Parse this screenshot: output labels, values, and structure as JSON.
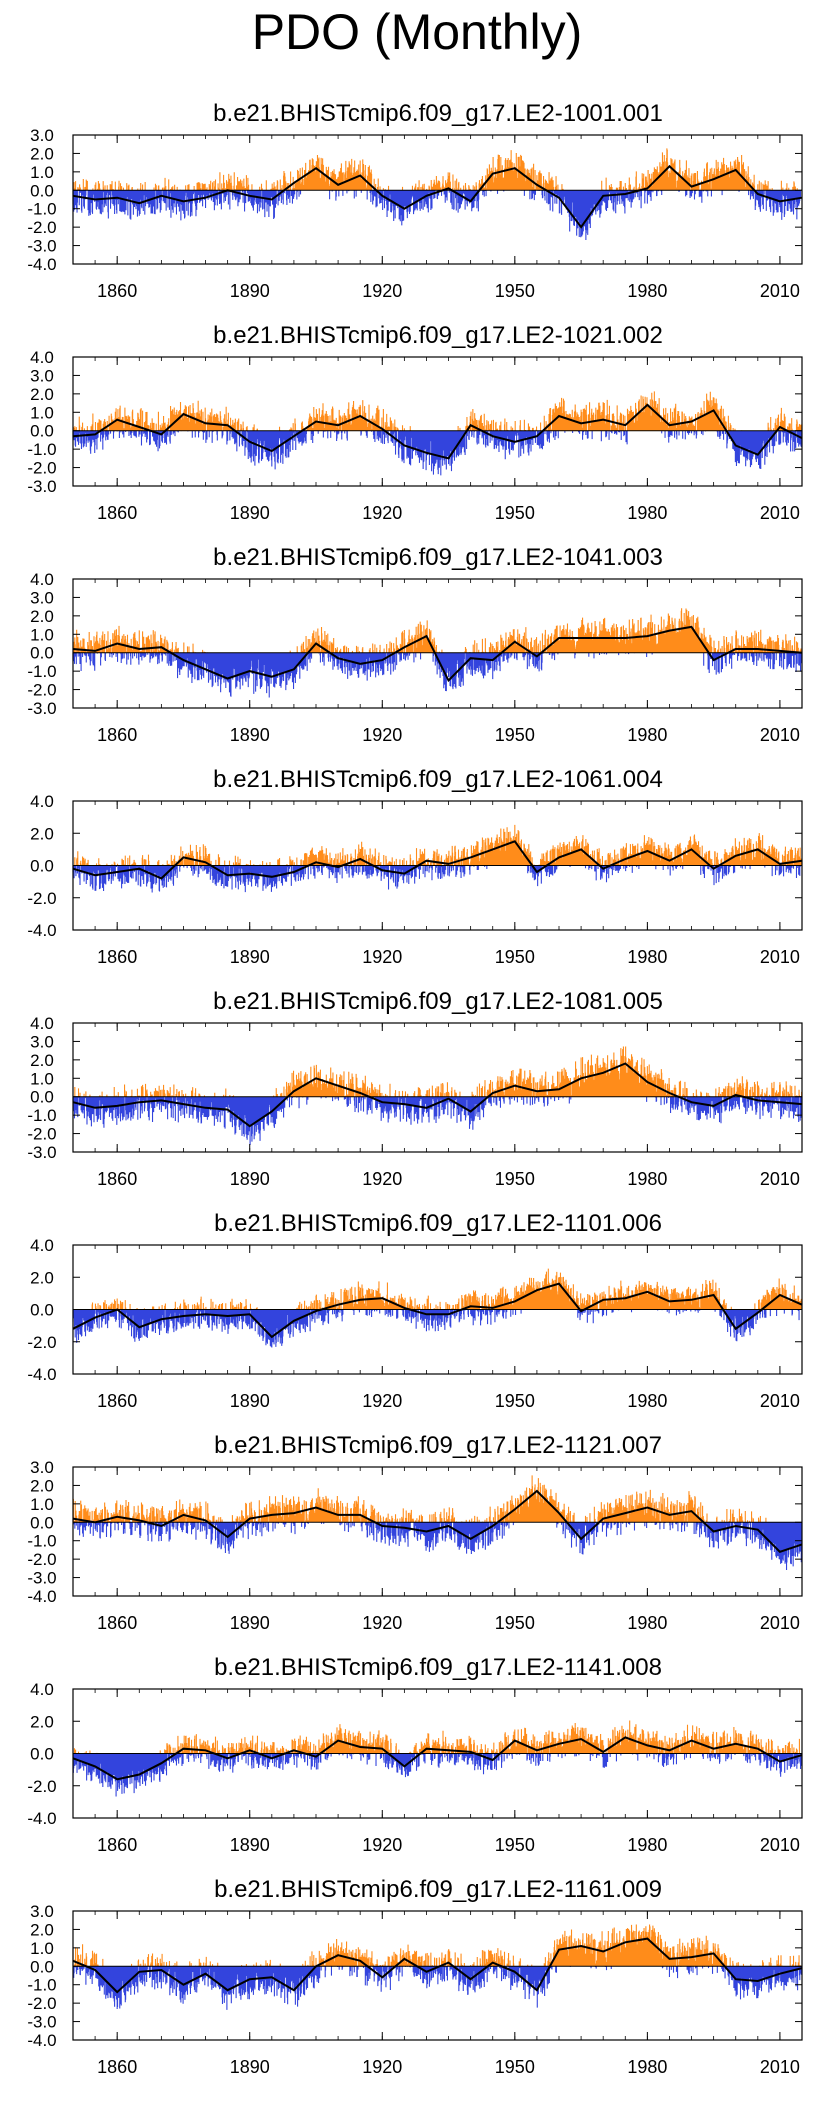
{
  "page_title": "PDO (Monthly)",
  "colors": {
    "positive": "#ff8c1a",
    "negative": "#3344dd",
    "smooth": "#000000",
    "axis": "#000000"
  },
  "chart_data": [
    {
      "type": "bar",
      "title": "b.e21.BHISTcmip6.f09_g17.LE2-1001.001",
      "xlim": [
        1850,
        2015
      ],
      "ylim": [
        -4.0,
        3.0
      ],
      "yticks": [
        -4.0,
        -3.0,
        -2.0,
        -1.0,
        0.0,
        1.0,
        2.0,
        3.0
      ],
      "ytick_labels": [
        "-4.0",
        "-3.0",
        "-2.0",
        "-1.0",
        "0.0",
        "1.0",
        "2.0",
        "3.0"
      ],
      "xticks": [
        1860,
        1890,
        1920,
        1950,
        1980,
        2010
      ],
      "xtick_labels": [
        "1860",
        "1890",
        "1920",
        "1950",
        "1980",
        "2010"
      ],
      "xlabel": "",
      "ylabel": "",
      "smooth_x": [
        1850,
        1855,
        1860,
        1865,
        1870,
        1875,
        1880,
        1885,
        1890,
        1895,
        1900,
        1905,
        1910,
        1915,
        1920,
        1925,
        1930,
        1935,
        1940,
        1945,
        1950,
        1955,
        1960,
        1965,
        1970,
        1975,
        1980,
        1985,
        1990,
        1995,
        2000,
        2005,
        2010,
        2015
      ],
      "smooth_y": [
        -0.3,
        -0.5,
        -0.4,
        -0.7,
        -0.3,
        -0.6,
        -0.4,
        0.0,
        -0.3,
        -0.5,
        0.4,
        1.2,
        0.3,
        0.8,
        -0.3,
        -1.0,
        -0.3,
        0.1,
        -0.6,
        0.9,
        1.2,
        0.3,
        -0.4,
        -2.0,
        -0.3,
        -0.2,
        0.1,
        1.3,
        0.2,
        0.6,
        1.1,
        -0.2,
        -0.6,
        -0.4
      ]
    },
    {
      "type": "bar",
      "title": "b.e21.BHISTcmip6.f09_g17.LE2-1021.002",
      "xlim": [
        1850,
        2015
      ],
      "ylim": [
        -3.0,
        4.0
      ],
      "yticks": [
        -3.0,
        -2.0,
        -1.0,
        0.0,
        1.0,
        2.0,
        3.0,
        4.0
      ],
      "ytick_labels": [
        "-3.0",
        "-2.0",
        "-1.0",
        "0.0",
        "1.0",
        "2.0",
        "3.0",
        "4.0"
      ],
      "xticks": [
        1860,
        1890,
        1920,
        1950,
        1980,
        2010
      ],
      "xtick_labels": [
        "1860",
        "1890",
        "1920",
        "1950",
        "1980",
        "2010"
      ],
      "xlabel": "",
      "ylabel": "",
      "smooth_x": [
        1850,
        1855,
        1860,
        1865,
        1870,
        1875,
        1880,
        1885,
        1890,
        1895,
        1900,
        1905,
        1910,
        1915,
        1920,
        1925,
        1930,
        1935,
        1940,
        1945,
        1950,
        1955,
        1960,
        1965,
        1970,
        1975,
        1980,
        1985,
        1990,
        1995,
        2000,
        2005,
        2010,
        2015
      ],
      "smooth_y": [
        -0.3,
        -0.2,
        0.6,
        0.2,
        -0.2,
        0.9,
        0.4,
        0.3,
        -0.6,
        -1.1,
        -0.3,
        0.5,
        0.3,
        0.8,
        0.1,
        -0.8,
        -1.2,
        -1.5,
        0.3,
        -0.3,
        -0.6,
        -0.3,
        0.8,
        0.4,
        0.6,
        0.3,
        1.4,
        0.3,
        0.5,
        1.1,
        -0.8,
        -1.3,
        0.2,
        -0.4
      ]
    },
    {
      "type": "bar",
      "title": "b.e21.BHISTcmip6.f09_g17.LE2-1041.003",
      "xlim": [
        1850,
        2015
      ],
      "ylim": [
        -3.0,
        4.0
      ],
      "yticks": [
        -3.0,
        -2.0,
        -1.0,
        0.0,
        1.0,
        2.0,
        3.0,
        4.0
      ],
      "ytick_labels": [
        "-3.0",
        "-2.0",
        "-1.0",
        "0.0",
        "1.0",
        "2.0",
        "3.0",
        "4.0"
      ],
      "xticks": [
        1860,
        1890,
        1920,
        1950,
        1980,
        2010
      ],
      "xtick_labels": [
        "1860",
        "1890",
        "1920",
        "1950",
        "1980",
        "2010"
      ],
      "xlabel": "",
      "ylabel": "",
      "smooth_x": [
        1850,
        1855,
        1860,
        1865,
        1870,
        1875,
        1880,
        1885,
        1890,
        1895,
        1900,
        1905,
        1910,
        1915,
        1920,
        1925,
        1930,
        1935,
        1940,
        1945,
        1950,
        1955,
        1960,
        1965,
        1970,
        1975,
        1980,
        1985,
        1990,
        1995,
        2000,
        2005,
        2010,
        2015
      ],
      "smooth_y": [
        0.2,
        0.1,
        0.5,
        0.2,
        0.3,
        -0.4,
        -0.9,
        -1.4,
        -1.0,
        -1.3,
        -0.9,
        0.5,
        -0.3,
        -0.6,
        -0.4,
        0.3,
        0.9,
        -1.5,
        -0.3,
        -0.4,
        0.6,
        -0.2,
        0.8,
        0.8,
        0.8,
        0.8,
        0.9,
        1.2,
        1.4,
        -0.4,
        0.2,
        0.2,
        0.1,
        0.0
      ]
    },
    {
      "type": "bar",
      "title": "b.e21.BHISTcmip6.f09_g17.LE2-1061.004",
      "xlim": [
        1850,
        2015
      ],
      "ylim": [
        -4.0,
        4.0
      ],
      "yticks": [
        -4.0,
        -2.0,
        0.0,
        2.0,
        4.0
      ],
      "ytick_labels": [
        "-4.0",
        "-2.0",
        "0.0",
        "2.0",
        "4.0"
      ],
      "xticks": [
        1860,
        1890,
        1920,
        1950,
        1980,
        2010
      ],
      "xtick_labels": [
        "1860",
        "1890",
        "1920",
        "1950",
        "1980",
        "2010"
      ],
      "xlabel": "",
      "ylabel": "",
      "smooth_x": [
        1850,
        1855,
        1860,
        1865,
        1870,
        1875,
        1880,
        1885,
        1890,
        1895,
        1900,
        1905,
        1910,
        1915,
        1920,
        1925,
        1930,
        1935,
        1940,
        1945,
        1950,
        1955,
        1960,
        1965,
        1970,
        1975,
        1980,
        1985,
        1990,
        1995,
        2000,
        2005,
        2010,
        2015
      ],
      "smooth_y": [
        -0.2,
        -0.6,
        -0.4,
        -0.2,
        -0.8,
        0.5,
        0.2,
        -0.6,
        -0.5,
        -0.7,
        -0.4,
        0.2,
        -0.1,
        0.4,
        -0.3,
        -0.5,
        0.3,
        0.1,
        0.5,
        1.0,
        1.5,
        -0.4,
        0.5,
        1.0,
        -0.2,
        0.4,
        0.9,
        0.3,
        1.0,
        -0.2,
        0.6,
        1.0,
        0.1,
        0.3
      ]
    },
    {
      "type": "bar",
      "title": "b.e21.BHISTcmip6.f09_g17.LE2-1081.005",
      "xlim": [
        1850,
        2015
      ],
      "ylim": [
        -3.0,
        4.0
      ],
      "yticks": [
        -3.0,
        -2.0,
        -1.0,
        0.0,
        1.0,
        2.0,
        3.0,
        4.0
      ],
      "ytick_labels": [
        "-3.0",
        "-2.0",
        "-1.0",
        "0.0",
        "1.0",
        "2.0",
        "3.0",
        "4.0"
      ],
      "xticks": [
        1860,
        1890,
        1920,
        1950,
        1980,
        2010
      ],
      "xtick_labels": [
        "1860",
        "1890",
        "1920",
        "1950",
        "1980",
        "2010"
      ],
      "xlabel": "",
      "ylabel": "",
      "smooth_x": [
        1850,
        1855,
        1860,
        1865,
        1870,
        1875,
        1880,
        1885,
        1890,
        1895,
        1900,
        1905,
        1910,
        1915,
        1920,
        1925,
        1930,
        1935,
        1940,
        1945,
        1950,
        1955,
        1960,
        1965,
        1970,
        1975,
        1980,
        1985,
        1990,
        1995,
        2000,
        2005,
        2010,
        2015
      ],
      "smooth_y": [
        -0.3,
        -0.6,
        -0.5,
        -0.3,
        -0.2,
        -0.4,
        -0.6,
        -0.7,
        -1.6,
        -0.8,
        0.3,
        1.0,
        0.6,
        0.2,
        -0.3,
        -0.4,
        -0.6,
        -0.1,
        -0.8,
        0.2,
        0.6,
        0.3,
        0.4,
        1.0,
        1.3,
        1.8,
        0.8,
        0.2,
        -0.3,
        -0.5,
        0.1,
        -0.2,
        -0.3,
        -0.4
      ]
    },
    {
      "type": "bar",
      "title": "b.e21.BHISTcmip6.f09_g17.LE2-1101.006",
      "xlim": [
        1850,
        2015
      ],
      "ylim": [
        -4.0,
        4.0
      ],
      "yticks": [
        -4.0,
        -2.0,
        0.0,
        2.0,
        4.0
      ],
      "ytick_labels": [
        "-4.0",
        "-2.0",
        "0.0",
        "2.0",
        "4.0"
      ],
      "xticks": [
        1860,
        1890,
        1920,
        1950,
        1980,
        2010
      ],
      "xtick_labels": [
        "1860",
        "1890",
        "1920",
        "1950",
        "1980",
        "2010"
      ],
      "xlabel": "",
      "ylabel": "",
      "smooth_x": [
        1850,
        1855,
        1860,
        1865,
        1870,
        1875,
        1880,
        1885,
        1890,
        1895,
        1900,
        1905,
        1910,
        1915,
        1920,
        1925,
        1930,
        1935,
        1940,
        1945,
        1950,
        1955,
        1960,
        1965,
        1970,
        1975,
        1980,
        1985,
        1990,
        1995,
        2000,
        2005,
        2010,
        2015
      ],
      "smooth_y": [
        -1.2,
        -0.5,
        0.0,
        -1.1,
        -0.6,
        -0.4,
        -0.3,
        -0.4,
        -0.3,
        -1.7,
        -0.7,
        -0.1,
        0.3,
        0.6,
        0.7,
        0.1,
        -0.3,
        -0.3,
        0.2,
        0.1,
        0.5,
        1.2,
        1.6,
        -0.1,
        0.6,
        0.7,
        1.1,
        0.5,
        0.6,
        0.9,
        -1.2,
        -0.2,
        0.9,
        0.3
      ]
    },
    {
      "type": "bar",
      "title": "b.e21.BHISTcmip6.f09_g17.LE2-1121.007",
      "xlim": [
        1850,
        2015
      ],
      "ylim": [
        -4.0,
        3.0
      ],
      "yticks": [
        -4.0,
        -3.0,
        -2.0,
        -1.0,
        0.0,
        1.0,
        2.0,
        3.0
      ],
      "ytick_labels": [
        "-4.0",
        "-3.0",
        "-2.0",
        "-1.0",
        "0.0",
        "1.0",
        "2.0",
        "3.0"
      ],
      "xticks": [
        1860,
        1890,
        1920,
        1950,
        1980,
        2010
      ],
      "xtick_labels": [
        "1860",
        "1890",
        "1920",
        "1950",
        "1980",
        "2010"
      ],
      "xlabel": "",
      "ylabel": "",
      "smooth_x": [
        1850,
        1855,
        1860,
        1865,
        1870,
        1875,
        1880,
        1885,
        1890,
        1895,
        1900,
        1905,
        1910,
        1915,
        1920,
        1925,
        1930,
        1935,
        1940,
        1945,
        1950,
        1955,
        1960,
        1965,
        1970,
        1975,
        1980,
        1985,
        1990,
        1995,
        2000,
        2005,
        2010,
        2015
      ],
      "smooth_y": [
        0.2,
        0.0,
        0.3,
        0.1,
        -0.2,
        0.4,
        0.1,
        -0.8,
        0.2,
        0.4,
        0.5,
        0.8,
        0.4,
        0.4,
        -0.2,
        -0.3,
        -0.5,
        -0.2,
        -0.9,
        -0.2,
        0.7,
        1.7,
        0.5,
        -0.9,
        0.2,
        0.5,
        0.8,
        0.4,
        0.6,
        -0.5,
        -0.2,
        -0.4,
        -1.6,
        -1.2
      ]
    },
    {
      "type": "bar",
      "title": "b.e21.BHISTcmip6.f09_g17.LE2-1141.008",
      "xlim": [
        1850,
        2015
      ],
      "ylim": [
        -4.0,
        4.0
      ],
      "yticks": [
        -4.0,
        -2.0,
        0.0,
        2.0,
        4.0
      ],
      "ytick_labels": [
        "-4.0",
        "-2.0",
        "0.0",
        "2.0",
        "4.0"
      ],
      "xticks": [
        1860,
        1890,
        1920,
        1950,
        1980,
        2010
      ],
      "xtick_labels": [
        "1860",
        "1890",
        "1920",
        "1950",
        "1980",
        "2010"
      ],
      "xlabel": "",
      "ylabel": "",
      "smooth_x": [
        1850,
        1855,
        1860,
        1865,
        1870,
        1875,
        1880,
        1885,
        1890,
        1895,
        1900,
        1905,
        1910,
        1915,
        1920,
        1925,
        1930,
        1935,
        1940,
        1945,
        1950,
        1955,
        1960,
        1965,
        1970,
        1975,
        1980,
        1985,
        1990,
        1995,
        2000,
        2005,
        2010,
        2015
      ],
      "smooth_y": [
        -0.3,
        -0.8,
        -1.6,
        -1.3,
        -0.6,
        0.3,
        0.2,
        -0.3,
        0.2,
        -0.3,
        0.2,
        -0.2,
        0.8,
        0.4,
        0.3,
        -0.8,
        0.3,
        0.2,
        0.1,
        -0.4,
        0.8,
        0.2,
        0.6,
        0.9,
        0.1,
        1.0,
        0.5,
        0.2,
        0.8,
        0.3,
        0.6,
        0.3,
        -0.5,
        -0.1
      ]
    },
    {
      "type": "bar",
      "title": "b.e21.BHISTcmip6.f09_g17.LE2-1161.009",
      "xlim": [
        1850,
        2015
      ],
      "ylim": [
        -4.0,
        3.0
      ],
      "yticks": [
        -4.0,
        -3.0,
        -2.0,
        -1.0,
        0.0,
        1.0,
        2.0,
        3.0
      ],
      "ytick_labels": [
        "-4.0",
        "-3.0",
        "-2.0",
        "-1.0",
        "0.0",
        "1.0",
        "2.0",
        "3.0"
      ],
      "xticks": [
        1860,
        1890,
        1920,
        1950,
        1980,
        2010
      ],
      "xtick_labels": [
        "1860",
        "1890",
        "1920",
        "1950",
        "1980",
        "2010"
      ],
      "xlabel": "",
      "ylabel": "",
      "smooth_x": [
        1850,
        1855,
        1860,
        1865,
        1870,
        1875,
        1880,
        1885,
        1890,
        1895,
        1900,
        1905,
        1910,
        1915,
        1920,
        1925,
        1930,
        1935,
        1940,
        1945,
        1950,
        1955,
        1960,
        1965,
        1970,
        1975,
        1980,
        1985,
        1990,
        1995,
        2000,
        2005,
        2010,
        2015
      ],
      "smooth_y": [
        0.3,
        -0.2,
        -1.4,
        -0.3,
        -0.2,
        -1.0,
        -0.4,
        -1.3,
        -0.7,
        -0.6,
        -1.3,
        0.0,
        0.6,
        0.3,
        -0.6,
        0.4,
        -0.3,
        0.2,
        -0.7,
        0.2,
        -0.3,
        -1.3,
        0.9,
        1.1,
        0.8,
        1.3,
        1.5,
        0.4,
        0.5,
        0.7,
        -0.7,
        -0.8,
        -0.4,
        -0.1
      ]
    }
  ]
}
